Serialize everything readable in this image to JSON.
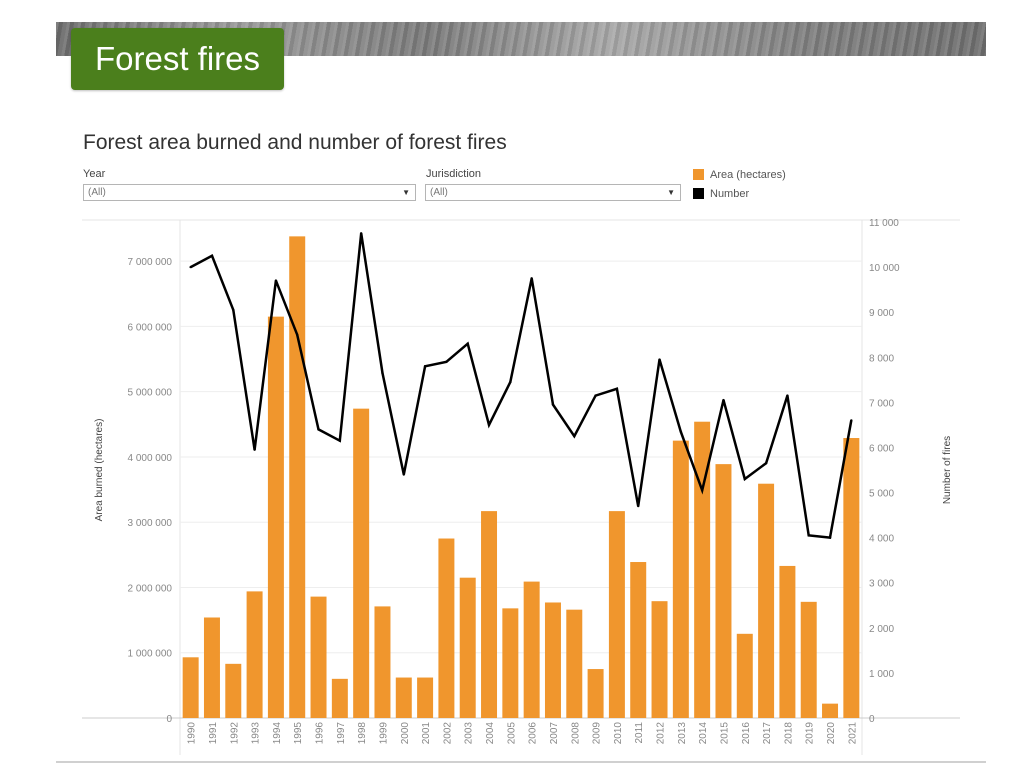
{
  "page": {
    "tab_title": "Forest fires"
  },
  "filters": {
    "year": {
      "label": "Year",
      "value": "(All)"
    },
    "jurisdiction": {
      "label": "Jurisdiction",
      "value": "(All)"
    }
  },
  "chart_data": {
    "type": "bar",
    "title": "Forest area burned and number of forest fires",
    "categories": [
      "1990",
      "1991",
      "1992",
      "1993",
      "1994",
      "1995",
      "1996",
      "1997",
      "1998",
      "1999",
      "2000",
      "2001",
      "2002",
      "2003",
      "2004",
      "2005",
      "2006",
      "2007",
      "2008",
      "2009",
      "2010",
      "2011",
      "2012",
      "2013",
      "2014",
      "2015",
      "2016",
      "2017",
      "2018",
      "2019",
      "2020",
      "2021"
    ],
    "series": [
      {
        "name": "Area (hectares)",
        "type": "bar",
        "axis": "left",
        "color": "#f0962d",
        "values": [
          930000,
          1540000,
          830000,
          1940000,
          6150000,
          7380000,
          1860000,
          600000,
          4740000,
          1710000,
          620000,
          620000,
          2750000,
          2150000,
          3170000,
          1680000,
          2090000,
          1770000,
          1660000,
          750000,
          3170000,
          2390000,
          1790000,
          4250000,
          4540000,
          3890000,
          1290000,
          3590000,
          2330000,
          1780000,
          220000,
          4290000
        ]
      },
      {
        "name": "Number",
        "type": "line",
        "axis": "right",
        "color": "#000000",
        "values": [
          10000,
          10250,
          9050,
          5950,
          9700,
          8500,
          6400,
          6150,
          10750,
          7650,
          5400,
          7800,
          7900,
          8300,
          6500,
          7450,
          9750,
          6950,
          6250,
          7150,
          7300,
          4700,
          7950,
          6350,
          5050,
          7050,
          5300,
          5650,
          7150,
          4050,
          4000,
          6600
        ]
      }
    ],
    "ylabel": "Area burned (hectares)",
    "y2label": "Number of fires",
    "ylim": [
      0,
      7600000
    ],
    "y2lim": [
      0,
      11000
    ],
    "yticks": [
      0,
      1000000,
      2000000,
      3000000,
      4000000,
      5000000,
      6000000,
      7000000
    ],
    "ytick_labels": [
      "0",
      "1 000 000",
      "2 000 000",
      "3 000 000",
      "4 000 000",
      "5 000 000",
      "6 000 000",
      "7 000 000"
    ],
    "y2ticks": [
      0,
      1000,
      2000,
      3000,
      4000,
      5000,
      6000,
      7000,
      8000,
      9000,
      10000,
      11000
    ],
    "y2tick_labels": [
      "0",
      "1 000",
      "2 000",
      "3 000",
      "4 000",
      "5 000",
      "6 000",
      "7 000",
      "8 000",
      "9 000",
      "10 000",
      "11 000"
    ],
    "grid": true,
    "legend_position": "top-right"
  }
}
